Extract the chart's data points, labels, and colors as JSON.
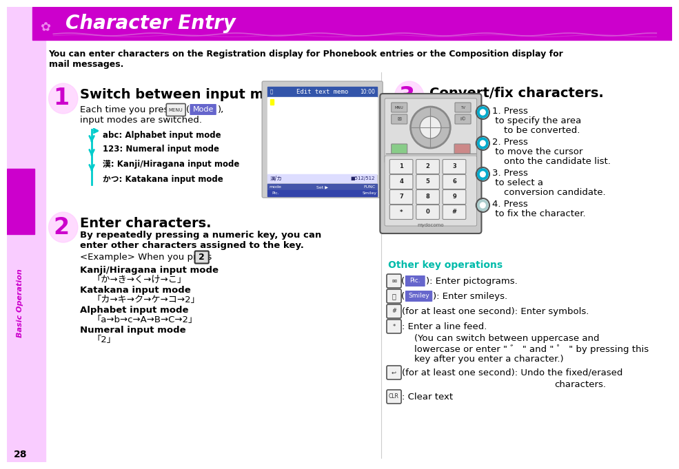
{
  "title": "Character Entry",
  "title_bg_color": "#CC00CC",
  "title_text_color": "#FFFFFF",
  "left_sidebar_color": "#F9CCFF",
  "left_bar_color": "#CC00CC",
  "sidebar_text": "Basic Operation",
  "sidebar_text_color": "#CC00CC",
  "page_number": "28",
  "bg_color": "#FFFFFF",
  "intro_line1": "You can enter characters on the Registration display for Phonebook entries or the Composition display for",
  "intro_line2": "mail messages.",
  "step1_number": "1",
  "step1_title": "Switch between input modes.",
  "step1_modes": [
    "abc: Alphabet input mode",
    "123: Numeral input mode",
    "漢: Kanji/Hiragana input mode",
    "かつ: Katakana input mode"
  ],
  "step2_number": "2",
  "step2_title": "Enter characters.",
  "step2_bold1": "By repeatedly pressing a numeric key, you can",
  "step2_bold2": "enter other characters assigned to the key.",
  "step2_example": "<Example> When you press",
  "step2_modes": [
    [
      "Kanji/Hiragana input mode",
      "「か→き→く→け→こ」"
    ],
    [
      "Katakana input mode",
      "「カ→キ→ク→ケ→コ→2」"
    ],
    [
      "Alphabet input mode",
      "「a→b→c→A→B→C→2」"
    ],
    [
      "Numeral input mode",
      "「2」"
    ]
  ],
  "step3_number": "3",
  "step3_title": "Convert/fix characters.",
  "step3_items": [
    [
      "1. Press ",
      " to specify the area",
      "    to be converted."
    ],
    [
      "2. Press ",
      " to move the cursor",
      "    onto the candidate list."
    ],
    [
      "3. Press ",
      " to select a",
      "    conversion candidate."
    ],
    [
      "4. Press ",
      " to fix the character.",
      ""
    ]
  ],
  "other_ops_title": "Other key operations",
  "other_ops_title_color": "#00BBAA",
  "accent_color": "#CC00CC",
  "cyan_arrow_color": "#00CCCC",
  "text_color": "#000000",
  "step_num_color": "#CC00CC",
  "divider_color": "#CCCCCC",
  "mode_btn_color": "#6666CC",
  "menu_border_color": "#888888",
  "pic_badge_color": "#6666CC",
  "smiley_badge_color": "#6666CC"
}
